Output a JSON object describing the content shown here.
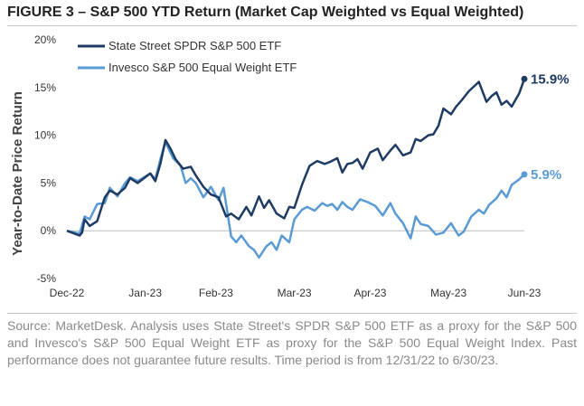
{
  "title": "FIGURE 3 – S&P 500 YTD Return (Market Cap Weighted vs Equal Weighted)",
  "source_note": "Source: MarketDesk. Analysis uses State Street's SPDR S&P 500 ETF as a proxy for the S&P 500 and Invesco's S&P 500 Equal Weight ETF as proxy for the S&P 500 Equal Weight Index. Past performance does not guarantee future results. Time period is from 12/31/22 to 6/30/23.",
  "colors": {
    "spdr": "#1f3b63",
    "invesco": "#5b9bd5",
    "zero_line": "#bfbfbf",
    "axis_text": "#333333"
  },
  "chart_data": {
    "type": "line",
    "title": "FIGURE 3 – S&P 500 YTD Return (Market Cap Weighted vs Equal Weighted)",
    "xlabel": "",
    "ylabel": "Year-to-Date Price Return",
    "y_ticks": [
      "20%",
      "15%",
      "10%",
      "5%",
      "0%",
      "-5%"
    ],
    "y_tick_values": [
      20,
      15,
      10,
      5,
      0,
      -5
    ],
    "ylim": [
      -5,
      20
    ],
    "x_ticks": [
      "Dec-22",
      "Jan-23",
      "Feb-23",
      "Mar-23",
      "Apr-23",
      "May-23",
      "Jun-23"
    ],
    "x_tick_values": [
      "2022-12-31",
      "2023-01-31",
      "2023-02-28",
      "2023-03-31",
      "2023-04-30",
      "2023-05-31",
      "2023-06-30"
    ],
    "xlim": [
      "2022-12-31",
      "2023-06-30"
    ],
    "grid": false,
    "legend_position": "top-left",
    "series": [
      {
        "name": "State Street SPDR S&P 500 ETF",
        "end_label": "15.9%",
        "x": [
          "2022-12-31",
          "2023-01-05",
          "2023-01-06",
          "2023-01-07",
          "2023-01-09",
          "2023-01-12",
          "2023-01-15",
          "2023-01-17",
          "2023-01-20",
          "2023-01-23",
          "2023-01-25",
          "2023-01-28",
          "2023-02-02",
          "2023-02-04",
          "2023-02-06",
          "2023-02-08",
          "2023-02-10",
          "2023-02-12",
          "2023-02-15",
          "2023-02-18",
          "2023-02-20",
          "2023-02-23",
          "2023-02-26",
          "2023-03-01",
          "2023-03-04",
          "2023-03-06",
          "2023-03-09",
          "2023-03-12",
          "2023-03-14",
          "2023-03-17",
          "2023-03-19",
          "2023-03-21",
          "2023-03-24",
          "2023-03-27",
          "2023-03-29",
          "2023-03-31",
          "2023-04-03",
          "2023-04-06",
          "2023-04-09",
          "2023-04-12",
          "2023-04-14",
          "2023-04-17",
          "2023-04-19",
          "2023-04-21",
          "2023-04-23",
          "2023-04-25",
          "2023-04-27",
          "2023-04-30",
          "2023-05-03",
          "2023-05-05",
          "2023-05-08",
          "2023-05-10",
          "2023-05-13",
          "2023-05-16",
          "2023-05-18",
          "2023-05-20",
          "2023-05-23",
          "2023-05-25",
          "2023-05-27",
          "2023-05-29",
          "2023-06-01",
          "2023-06-03",
          "2023-06-05",
          "2023-06-08",
          "2023-06-12",
          "2023-06-15",
          "2023-06-17",
          "2023-06-19",
          "2023-06-21",
          "2023-06-23",
          "2023-06-25",
          "2023-06-28",
          "2023-06-30"
        ],
        "values": [
          0,
          -0.5,
          -0.2,
          1.2,
          0.5,
          1.0,
          3.5,
          4.2,
          3.8,
          4.5,
          5.5,
          5.0,
          6.0,
          5.2,
          7.0,
          9.5,
          8.6,
          7.5,
          6.5,
          6.7,
          5.8,
          4.6,
          3.8,
          3.5,
          1.5,
          1.8,
          1.2,
          2.5,
          1.6,
          3.6,
          2.4,
          3.2,
          1.8,
          1.3,
          2.5,
          2.4,
          4.8,
          6.8,
          7.3,
          7.0,
          7.2,
          7.6,
          6.1,
          7.0,
          7.1,
          7.5,
          6.5,
          8.2,
          8.6,
          7.4,
          8.4,
          9.0,
          7.9,
          8.2,
          9.6,
          9.4,
          10.0,
          10.1,
          11.0,
          12.8,
          12.2,
          13.0,
          13.6,
          14.6,
          15.6,
          13.5,
          14.1,
          14.5,
          13.2,
          13.6,
          13.0,
          14.4,
          15.9
        ]
      },
      {
        "name": "Invesco S&P 500 Equal Weight ETF",
        "end_label": "5.9%",
        "x": [
          "2022-12-31",
          "2023-01-05",
          "2023-01-07",
          "2023-01-09",
          "2023-01-12",
          "2023-01-15",
          "2023-01-17",
          "2023-01-20",
          "2023-01-23",
          "2023-01-25",
          "2023-01-28",
          "2023-02-02",
          "2023-02-04",
          "2023-02-06",
          "2023-02-08",
          "2023-02-11",
          "2023-02-14",
          "2023-02-16",
          "2023-02-18",
          "2023-02-20",
          "2023-02-23",
          "2023-02-26",
          "2023-03-01",
          "2023-03-03",
          "2023-03-06",
          "2023-03-08",
          "2023-03-10",
          "2023-03-13",
          "2023-03-15",
          "2023-03-17",
          "2023-03-20",
          "2023-03-22",
          "2023-03-24",
          "2023-03-26",
          "2023-03-29",
          "2023-03-31",
          "2023-04-03",
          "2023-04-05",
          "2023-04-08",
          "2023-04-11",
          "2023-04-13",
          "2023-04-15",
          "2023-04-17",
          "2023-04-19",
          "2023-04-21",
          "2023-04-23",
          "2023-04-26",
          "2023-04-29",
          "2023-05-02",
          "2023-05-05",
          "2023-05-08",
          "2023-05-10",
          "2023-05-13",
          "2023-05-16",
          "2023-05-18",
          "2023-05-20",
          "2023-05-23",
          "2023-05-26",
          "2023-05-29",
          "2023-06-01",
          "2023-06-04",
          "2023-06-06",
          "2023-06-09",
          "2023-06-12",
          "2023-06-14",
          "2023-06-16",
          "2023-06-19",
          "2023-06-21",
          "2023-06-23",
          "2023-06-25",
          "2023-06-28",
          "2023-06-30"
        ],
        "values": [
          0,
          -0.3,
          1.5,
          1.2,
          2.8,
          2.9,
          4.5,
          3.6,
          5.0,
          5.6,
          5.2,
          6.0,
          5.4,
          7.5,
          9.3,
          7.6,
          6.8,
          5.0,
          5.5,
          5.0,
          3.5,
          4.6,
          3.2,
          4.5,
          -0.6,
          -1.2,
          -0.5,
          -1.6,
          -2.0,
          -2.8,
          -1.6,
          -1.2,
          -2.0,
          -0.5,
          -1.2,
          1.2,
          2.2,
          2.5,
          2.1,
          2.9,
          2.6,
          2.8,
          2.2,
          3.0,
          2.5,
          2.2,
          3.3,
          3.0,
          2.6,
          1.6,
          2.9,
          1.8,
          0.8,
          -0.8,
          1.5,
          0.7,
          0.5,
          -0.4,
          -0.2,
          0.8,
          -0.5,
          -0.1,
          1.5,
          2.2,
          1.8,
          2.7,
          3.4,
          4.2,
          3.5,
          4.8,
          5.4,
          5.9
        ]
      }
    ]
  }
}
